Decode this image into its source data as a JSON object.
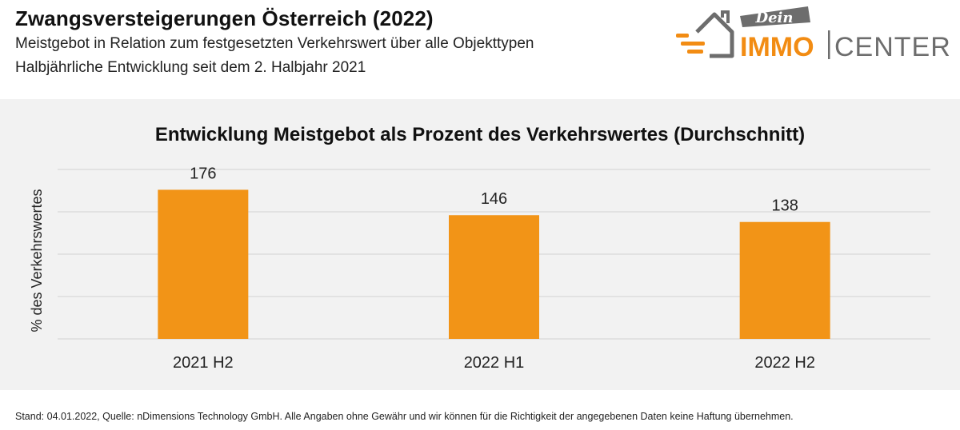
{
  "header": {
    "title": "Zwangsversteigerungen Österreich (2022)",
    "subtitle_line1": "Meistgebot in Relation zum festgesetzten Verkehrswert über alle Objekttypen",
    "subtitle_line2": "Halbjährliche Entwicklung seit dem 2. Halbjahr 2021"
  },
  "logo": {
    "script_word": "Dein",
    "word_left": "IMMO",
    "word_right": "CENTER",
    "icon": "house-icon",
    "accent_color": "#f28c13",
    "gray_color": "#6d6d6d"
  },
  "chart_data": {
    "type": "bar",
    "title": "Entwicklung Meistgebot als Prozent des Verkehrswertes (Durchschnitt)",
    "ylabel": "% des Verkehrswertes",
    "xlabel": "",
    "categories": [
      "2021 H2",
      "2022 H1",
      "2022 H2"
    ],
    "values": [
      176,
      146,
      138
    ],
    "data_labels": [
      "176",
      "146",
      "138"
    ],
    "ylim": [
      0,
      200
    ],
    "grid": true,
    "bar_color": "#f29417",
    "grid_color": "#d9d9d9",
    "background": "#f2f2f2"
  },
  "footer": {
    "note": "Stand: 04.01.2022, Quelle: nDimensions Technology GmbH. Alle Angaben ohne Gewähr und wir können für die Richtigkeit der angegebenen Daten keine Haftung übernehmen."
  }
}
